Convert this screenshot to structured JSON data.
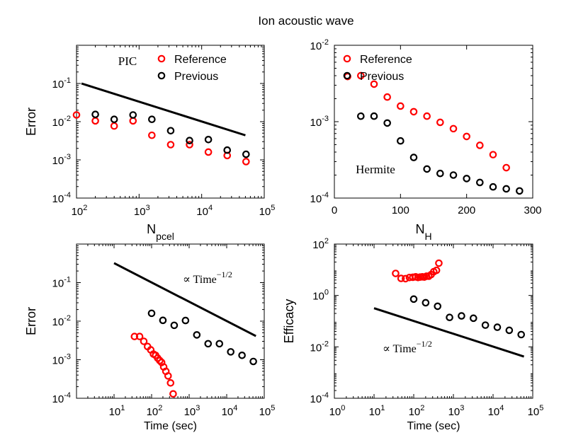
{
  "figure_title": "Ion acoustic wave",
  "colors": {
    "series_red": "#ff0000",
    "series_black": "#000000",
    "axis": "#000000"
  },
  "chart_data": [
    {
      "id": "pic_error",
      "type": "scatter",
      "title": "",
      "annotation": "PIC",
      "xlabel": "N",
      "xlabel_sub": "pcel",
      "ylabel": "Error",
      "xscale": "log",
      "yscale": "log",
      "xlim": [
        100,
        100000
      ],
      "ylim": [
        0.0001,
        1
      ],
      "xticks": [
        {
          "value": 100,
          "base": "10",
          "exp": "2"
        },
        {
          "value": 1000,
          "base": "10",
          "exp": "3"
        },
        {
          "value": 10000,
          "base": "10",
          "exp": "4"
        },
        {
          "value": 100000,
          "base": "10",
          "exp": "5"
        }
      ],
      "yticks": [
        {
          "value": 0.0001,
          "base": "10",
          "exp": "-4"
        },
        {
          "value": 0.001,
          "base": "10",
          "exp": "-3"
        },
        {
          "value": 0.01,
          "base": "10",
          "exp": "-2"
        },
        {
          "value": 0.1,
          "base": "10",
          "exp": "-1"
        }
      ],
      "legend": {
        "placement": "top-right",
        "entries": [
          {
            "label": "Reference",
            "color": "#ff0000"
          },
          {
            "label": "Previous",
            "color": "#000000"
          }
        ]
      },
      "series": [
        {
          "name": "Reference",
          "color": "#ff0000",
          "x": [
            100,
            200,
            400,
            800,
            1600,
            3200,
            6400,
            12800,
            25600,
            51200
          ],
          "y": [
            0.015,
            0.0105,
            0.0077,
            0.0105,
            0.0044,
            0.0025,
            0.0025,
            0.0016,
            0.0013,
            0.0009
          ]
        },
        {
          "name": "Previous",
          "color": "#000000",
          "x": [
            200,
            400,
            800,
            1600,
            3200,
            6400,
            12800,
            25600,
            51200
          ],
          "y": [
            0.0155,
            0.0115,
            0.015,
            0.0115,
            0.0058,
            0.0032,
            0.0034,
            0.0018,
            0.0014
          ]
        }
      ],
      "reference_line": {
        "x": [
          120,
          50000
        ],
        "y": [
          0.1,
          0.0044
        ]
      }
    },
    {
      "id": "hermite_error",
      "type": "scatter",
      "title": "",
      "annotation": "Hermite",
      "xlabel": "N",
      "xlabel_sub": "H",
      "ylabel": "",
      "xscale": "linear",
      "yscale": "log",
      "xlim": [
        0,
        300
      ],
      "ylim": [
        0.0001,
        0.01
      ],
      "xticks": [
        {
          "value": 0,
          "text": "0"
        },
        {
          "value": 100,
          "text": "100"
        },
        {
          "value": 200,
          "text": "200"
        },
        {
          "value": 300,
          "text": "300"
        }
      ],
      "yticks": [
        {
          "value": 0.0001,
          "base": "10",
          "exp": "-4"
        },
        {
          "value": 0.001,
          "base": "10",
          "exp": "-3"
        },
        {
          "value": 0.01,
          "base": "10",
          "exp": "-2"
        }
      ],
      "legend": {
        "placement": "top-right",
        "entries": [
          {
            "label": "Reference",
            "color": "#ff0000"
          },
          {
            "label": "Previous",
            "color": "#000000"
          }
        ]
      },
      "series": [
        {
          "name": "Reference",
          "color": "#ff0000",
          "x": [
            20,
            40,
            60,
            80,
            100,
            120,
            140,
            160,
            180,
            200,
            220,
            240,
            260
          ],
          "y": [
            0.0039,
            0.004,
            0.0031,
            0.0021,
            0.0016,
            0.00135,
            0.00118,
            0.00098,
            0.00081,
            0.00064,
            0.00049,
            0.00037,
            0.00025
          ]
        },
        {
          "name": "Previous",
          "color": "#000000",
          "x": [
            40,
            60,
            80,
            100,
            120,
            140,
            160,
            180,
            200,
            220,
            240,
            260,
            280
          ],
          "y": [
            0.00118,
            0.00118,
            0.00096,
            0.00056,
            0.00034,
            0.00024,
            0.00021,
            0.0002,
            0.00018,
            0.00016,
            0.00014,
            0.000132,
            0.000124
          ]
        }
      ]
    },
    {
      "id": "error_vs_time",
      "type": "scatter",
      "title": "",
      "annotation": "",
      "xlabel": "Time (sec)",
      "ylabel": "Error",
      "xscale": "log",
      "yscale": "log",
      "xlim": [
        1,
        100000
      ],
      "ylim": [
        0.0001,
        1
      ],
      "xticks": [
        {
          "value": 10,
          "base": "10",
          "exp": "1"
        },
        {
          "value": 100,
          "base": "10",
          "exp": "2"
        },
        {
          "value": 1000,
          "base": "10",
          "exp": "3"
        },
        {
          "value": 10000,
          "base": "10",
          "exp": "4"
        },
        {
          "value": 100000,
          "base": "10",
          "exp": "5"
        }
      ],
      "yticks": [
        {
          "value": 0.0001,
          "base": "10",
          "exp": "-4"
        },
        {
          "value": 0.001,
          "base": "10",
          "exp": "-3"
        },
        {
          "value": 0.01,
          "base": "10",
          "exp": "-2"
        },
        {
          "value": 0.1,
          "base": "10",
          "exp": "-1"
        }
      ],
      "line_label": {
        "prefix": "∝ Time",
        "exp": "−1/2"
      },
      "series": [
        {
          "name": "Reference",
          "color": "#ff0000",
          "x": [
            35,
            48,
            62,
            78,
            95,
            112,
            128,
            145,
            165,
            185,
            210,
            240,
            275,
            320,
            375
          ],
          "y": [
            0.004,
            0.004,
            0.003,
            0.0022,
            0.0018,
            0.0014,
            0.0013,
            0.0011,
            0.00095,
            0.00085,
            0.00065,
            0.0005,
            0.00038,
            0.00025,
            0.00013
          ]
        },
        {
          "name": "Previous",
          "color": "#000000",
          "x": [
            100,
            200,
            400,
            800,
            1600,
            3200,
            6400,
            12800,
            25600,
            51200
          ],
          "y": [
            0.016,
            0.0105,
            0.0078,
            0.0104,
            0.0044,
            0.0026,
            0.0026,
            0.0016,
            0.0013,
            0.0009
          ]
        }
      ],
      "reference_line": {
        "x": [
          10,
          60000
        ],
        "y": [
          0.32,
          0.0041
        ]
      }
    },
    {
      "id": "efficacy_vs_time",
      "type": "scatter",
      "title": "",
      "annotation": "",
      "xlabel": "Time (sec)",
      "ylabel": "Efficacy",
      "xscale": "log",
      "yscale": "log",
      "xlim": [
        1,
        100000
      ],
      "ylim": [
        0.0001,
        100
      ],
      "xticks": [
        {
          "value": 1,
          "base": "10",
          "exp": "0"
        },
        {
          "value": 10,
          "base": "10",
          "exp": "1"
        },
        {
          "value": 100,
          "base": "10",
          "exp": "2"
        },
        {
          "value": 1000,
          "base": "10",
          "exp": "3"
        },
        {
          "value": 10000,
          "base": "10",
          "exp": "4"
        },
        {
          "value": 100000,
          "base": "10",
          "exp": "5"
        }
      ],
      "yticks": [
        {
          "value": 0.0001,
          "base": "10",
          "exp": "-4"
        },
        {
          "value": 0.01,
          "base": "10",
          "exp": "-2"
        },
        {
          "value": 1,
          "base": "10",
          "exp": "0"
        },
        {
          "value": 100,
          "base": "10",
          "exp": "2"
        }
      ],
      "line_label": {
        "prefix": "∝ Time",
        "exp": "−1/2"
      },
      "series": [
        {
          "name": "Reference",
          "color": "#ff0000",
          "x": [
            35,
            48,
            62,
            78,
            95,
            112,
            128,
            145,
            165,
            185,
            210,
            240,
            275,
            320,
            375,
            430
          ],
          "y": [
            7.2,
            4.6,
            4.5,
            5.0,
            5.1,
            5.3,
            5.0,
            5.2,
            5.3,
            5.2,
            5.6,
            5.6,
            6.5,
            8.4,
            9.5,
            18
          ]
        },
        {
          "name": "Previous",
          "color": "#000000",
          "x": [
            100,
            200,
            400,
            800,
            1600,
            3200,
            6400,
            12800,
            25600,
            51200
          ],
          "y": [
            0.72,
            0.52,
            0.38,
            0.14,
            0.16,
            0.13,
            0.07,
            0.058,
            0.044,
            0.03
          ]
        }
      ],
      "reference_line": {
        "x": [
          10,
          60000
        ],
        "y": [
          0.32,
          0.0042
        ]
      }
    }
  ]
}
